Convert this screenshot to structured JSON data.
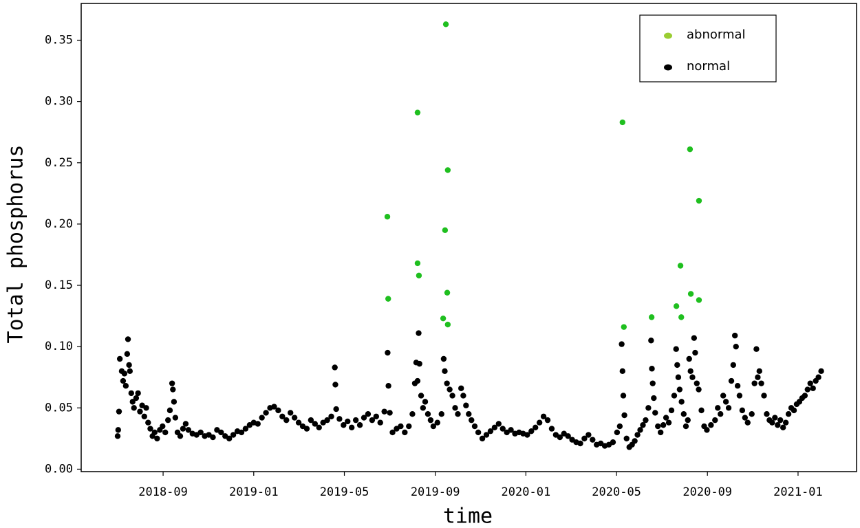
{
  "chart_data": {
    "type": "scatter",
    "x_label": "time",
    "y_label": "Total phosphorus",
    "xlim": [
      2018.366,
      2021.215
    ],
    "ylim": [
      -0.002,
      0.38
    ],
    "xticks": [
      {
        "value": 2018.667,
        "label": "2018-09"
      },
      {
        "value": 2019.0,
        "label": "2019-01"
      },
      {
        "value": 2019.333,
        "label": "2019-05"
      },
      {
        "value": 2019.667,
        "label": "2019-09"
      },
      {
        "value": 2020.0,
        "label": "2020-01"
      },
      {
        "value": 2020.333,
        "label": "2020-05"
      },
      {
        "value": 2020.667,
        "label": "2020-09"
      },
      {
        "value": 2021.0,
        "label": "2021-01"
      }
    ],
    "yticks": [
      {
        "value": 0,
        "label": "0.00"
      },
      {
        "value": 0.05,
        "label": "0.05"
      },
      {
        "value": 0.1,
        "label": "0.10"
      },
      {
        "value": 0.15,
        "label": "0.15"
      },
      {
        "value": 0.2,
        "label": "0.20"
      },
      {
        "value": 0.25,
        "label": "0.25"
      },
      {
        "value": 0.3,
        "label": "0.30"
      },
      {
        "value": 0.35,
        "label": "0.35"
      }
    ],
    "grid": false,
    "legend": "upper right",
    "series": [
      {
        "name": "abnormal",
        "color": "#1fbf1f",
        "legend_color": "#9acd32",
        "x": [
          2019.491,
          2019.494,
          2019.602,
          2019.602,
          2019.607,
          2019.706,
          2019.713,
          2019.703,
          2019.711,
          2019.696,
          2019.713,
          2020.355,
          2020.36,
          2020.462,
          2020.553,
          2020.568,
          2020.571,
          2020.603,
          2020.606,
          2020.636,
          2020.636
        ],
        "values": [
          0.206,
          0.139,
          0.291,
          0.168,
          0.158,
          0.363,
          0.244,
          0.195,
          0.144,
          0.123,
          0.118,
          0.283,
          0.116,
          0.124,
          0.133,
          0.166,
          0.124,
          0.261,
          0.143,
          0.219,
          0.138
        ]
      },
      {
        "name": "normal",
        "color": "#000000",
        "legend_color": "#000000",
        "x": [
          2018.5,
          2018.502,
          2018.505,
          2018.508,
          2018.515,
          2018.52,
          2018.525,
          2018.53,
          2018.535,
          2018.538,
          2018.542,
          2018.545,
          2018.55,
          2018.555,
          2018.56,
          2018.568,
          2018.575,
          2018.582,
          2018.59,
          2018.598,
          2018.605,
          2018.612,
          2018.62,
          2018.628,
          2018.636,
          2018.645,
          2018.655,
          2018.665,
          2018.675,
          2018.685,
          2018.692,
          2018.7,
          2018.703,
          2018.707,
          2018.712,
          2018.72,
          2018.73,
          2018.74,
          2018.75,
          2018.76,
          2018.775,
          2018.79,
          2018.805,
          2018.82,
          2018.835,
          2018.85,
          2018.865,
          2018.88,
          2018.895,
          2018.91,
          2018.925,
          2018.94,
          2018.955,
          2018.97,
          2018.985,
          2019.0,
          2019.015,
          2019.03,
          2019.045,
          2019.06,
          2019.075,
          2019.09,
          2019.105,
          2019.12,
          2019.135,
          2019.15,
          2019.165,
          2019.18,
          2019.195,
          2019.21,
          2019.225,
          2019.24,
          2019.255,
          2019.27,
          2019.285,
          2019.298,
          2019.3,
          2019.303,
          2019.315,
          2019.33,
          2019.345,
          2019.36,
          2019.375,
          2019.39,
          2019.405,
          2019.42,
          2019.435,
          2019.45,
          2019.465,
          2019.48,
          2019.492,
          2019.495,
          2019.5,
          2019.51,
          2019.525,
          2019.54,
          2019.555,
          2019.57,
          2019.583,
          2019.592,
          2019.597,
          2019.602,
          2019.606,
          2019.609,
          2019.615,
          2019.622,
          2019.63,
          2019.64,
          2019.65,
          2019.66,
          2019.675,
          2019.69,
          2019.698,
          2019.702,
          2019.71,
          2019.72,
          2019.73,
          2019.74,
          2019.75,
          2019.762,
          2019.77,
          2019.78,
          2019.79,
          2019.8,
          2019.812,
          2019.825,
          2019.84,
          2019.855,
          2019.87,
          2019.885,
          2019.9,
          2019.915,
          2019.93,
          2019.945,
          2019.96,
          2019.975,
          2019.99,
          2020.005,
          2020.02,
          2020.035,
          2020.05,
          2020.065,
          2020.08,
          2020.095,
          2020.11,
          2020.125,
          2020.14,
          2020.155,
          2020.17,
          2020.185,
          2020.2,
          2020.215,
          2020.23,
          2020.245,
          2020.26,
          2020.275,
          2020.29,
          2020.305,
          2020.32,
          2020.335,
          2020.345,
          2020.352,
          2020.355,
          2020.358,
          2020.362,
          2020.37,
          2020.38,
          2020.39,
          2020.4,
          2020.41,
          2020.42,
          2020.43,
          2020.44,
          2020.45,
          2020.46,
          2020.463,
          2020.466,
          2020.47,
          2020.475,
          2020.485,
          2020.495,
          2020.505,
          2020.515,
          2020.525,
          2020.535,
          2020.545,
          2020.552,
          2020.556,
          2020.56,
          2020.565,
          2020.572,
          2020.58,
          2020.588,
          2020.595,
          2020.6,
          2020.605,
          2020.612,
          2020.618,
          2020.622,
          2020.628,
          2020.635,
          2020.645,
          2020.655,
          2020.665,
          2020.68,
          2020.695,
          2020.705,
          2020.715,
          2020.725,
          2020.735,
          2020.745,
          2020.755,
          2020.762,
          2020.768,
          2020.772,
          2020.778,
          2020.785,
          2020.795,
          2020.805,
          2020.815,
          2020.83,
          2020.84,
          2020.847,
          2020.852,
          2020.858,
          2020.865,
          2020.875,
          2020.885,
          2020.895,
          2020.905,
          2020.915,
          2020.925,
          2020.935,
          2020.945,
          2020.955,
          2020.965,
          2020.975,
          2020.985,
          2020.995,
          2021.005,
          2021.015,
          2021.025,
          2021.035,
          2021.045,
          2021.055,
          2021.065,
          2021.075,
          2021.085
        ],
        "values": [
          0.027,
          0.032,
          0.047,
          0.09,
          0.08,
          0.072,
          0.078,
          0.068,
          0.094,
          0.106,
          0.085,
          0.08,
          0.062,
          0.055,
          0.05,
          0.058,
          0.062,
          0.047,
          0.052,
          0.043,
          0.05,
          0.038,
          0.033,
          0.027,
          0.03,
          0.025,
          0.032,
          0.035,
          0.03,
          0.04,
          0.048,
          0.07,
          0.065,
          0.055,
          0.042,
          0.03,
          0.027,
          0.033,
          0.037,
          0.032,
          0.029,
          0.028,
          0.03,
          0.027,
          0.028,
          0.026,
          0.032,
          0.03,
          0.027,
          0.025,
          0.028,
          0.031,
          0.03,
          0.033,
          0.036,
          0.038,
          0.037,
          0.042,
          0.046,
          0.05,
          0.051,
          0.048,
          0.043,
          0.04,
          0.046,
          0.042,
          0.038,
          0.035,
          0.033,
          0.04,
          0.037,
          0.034,
          0.038,
          0.04,
          0.043,
          0.083,
          0.069,
          0.049,
          0.041,
          0.036,
          0.039,
          0.034,
          0.04,
          0.036,
          0.042,
          0.045,
          0.04,
          0.043,
          0.038,
          0.047,
          0.095,
          0.068,
          0.046,
          0.03,
          0.033,
          0.035,
          0.03,
          0.035,
          0.045,
          0.07,
          0.087,
          0.072,
          0.111,
          0.086,
          0.06,
          0.05,
          0.055,
          0.045,
          0.04,
          0.035,
          0.038,
          0.045,
          0.09,
          0.08,
          0.07,
          0.065,
          0.06,
          0.05,
          0.045,
          0.066,
          0.06,
          0.052,
          0.045,
          0.04,
          0.035,
          0.03,
          0.025,
          0.028,
          0.031,
          0.034,
          0.037,
          0.033,
          0.03,
          0.032,
          0.029,
          0.03,
          0.029,
          0.028,
          0.031,
          0.034,
          0.038,
          0.043,
          0.04,
          0.033,
          0.028,
          0.026,
          0.029,
          0.027,
          0.024,
          0.022,
          0.021,
          0.025,
          0.028,
          0.024,
          0.02,
          0.021,
          0.019,
          0.02,
          0.022,
          0.03,
          0.035,
          0.102,
          0.08,
          0.06,
          0.044,
          0.025,
          0.018,
          0.02,
          0.023,
          0.028,
          0.032,
          0.036,
          0.04,
          0.05,
          0.105,
          0.082,
          0.07,
          0.058,
          0.046,
          0.035,
          0.03,
          0.036,
          0.042,
          0.038,
          0.048,
          0.06,
          0.098,
          0.085,
          0.075,
          0.065,
          0.055,
          0.045,
          0.035,
          0.04,
          0.09,
          0.08,
          0.075,
          0.107,
          0.095,
          0.07,
          0.065,
          0.048,
          0.035,
          0.032,
          0.036,
          0.04,
          0.05,
          0.045,
          0.06,
          0.055,
          0.05,
          0.072,
          0.085,
          0.109,
          0.1,
          0.068,
          0.06,
          0.048,
          0.042,
          0.038,
          0.045,
          0.07,
          0.098,
          0.075,
          0.08,
          0.07,
          0.06,
          0.045,
          0.04,
          0.038,
          0.042,
          0.036,
          0.04,
          0.034,
          0.038,
          0.045,
          0.05,
          0.048,
          0.053,
          0.055,
          0.058,
          0.06,
          0.065,
          0.07,
          0.066,
          0.072,
          0.075,
          0.08
        ]
      }
    ]
  }
}
